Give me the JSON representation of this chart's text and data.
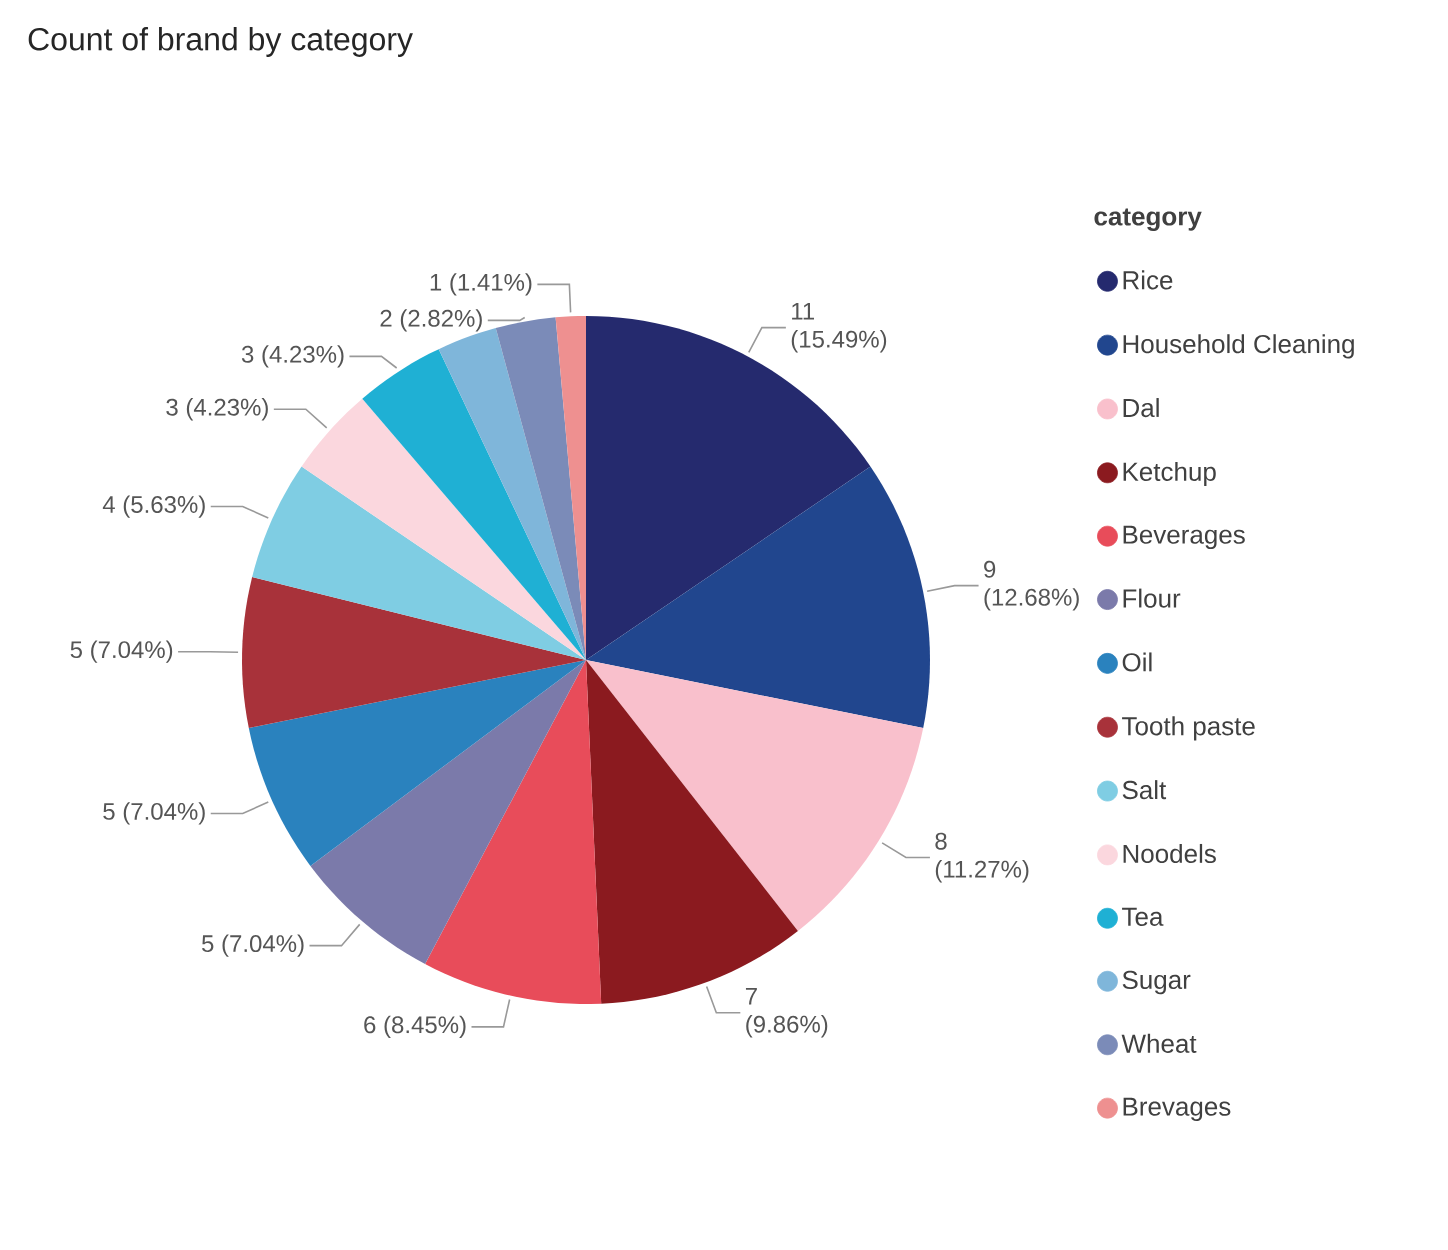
{
  "chart_data": {
    "type": "pie",
    "title": "Count of brand by category",
    "legend_title": "category",
    "legend": "right",
    "categories": [
      "Rice",
      "Household Cleaning",
      "Dal",
      "Ketchup",
      "Beverages",
      "Flour",
      "Oil",
      "Tooth paste",
      "Salt",
      "Noodels",
      "Tea",
      "Sugar",
      "Wheat",
      "Brevages"
    ],
    "values": [
      11,
      9,
      8,
      7,
      6,
      5,
      5,
      5,
      4,
      3,
      3,
      2,
      2,
      1
    ],
    "colors": [
      "#252a6e",
      "#21468e",
      "#f9c0cc",
      "#8b1a1f",
      "#e84c5a",
      "#7b7aaa",
      "#2a82be",
      "#a8323a",
      "#7fcde3",
      "#fbd7de",
      "#1fb0d4",
      "#7fb6da",
      "#7b8bb8",
      "#ee9090"
    ],
    "value_labels": [
      "11 (15.49%)",
      "9 (12.68%)",
      "8 (11.27%)",
      "7 (9.86%)",
      "6 (8.45%)",
      "5 (7.04%)",
      "5 (7.04%)",
      "5 (7.04%)",
      "4 (5.63%)",
      "3 (4.23%)",
      "3 (4.23%)",
      null,
      "2 (2.82%)",
      "1 (1.41%)"
    ]
  }
}
